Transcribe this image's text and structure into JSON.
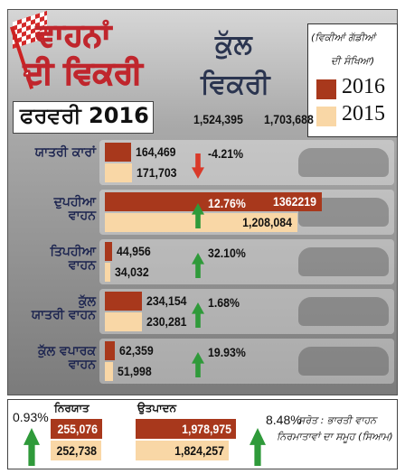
{
  "chart_data": {
    "type": "bar",
    "orientation": "horizontal",
    "title_lines": [
      "ਵਾਹਨਾਂ",
      "ਦੀ ਵਿਕਰੀ"
    ],
    "subtitle": "ਫਰਵਰੀ 2016",
    "total_title_lines": [
      "ਕੁੱਲ",
      "ਵਿਕਰੀ"
    ],
    "totals": {
      "values": [
        1524395,
        1703688
      ],
      "value_labels": [
        "1,524,395",
        "1,703,688"
      ]
    },
    "legend_title_lines": [
      "(ਵਿਕੀਆਂ ਗੱਡੀਆਂ",
      "ਦੀ ਸੰਖਿਆ)"
    ],
    "categories": [
      "ਯਾਤਰੀ ਕਾਰਾਂ",
      "ਦੁਪਹੀਆ\nਵਾਹਨ",
      "ਤਿਪਹੀਆ\nਵਾਹਨ",
      "ਕੁੱਲ\nਯਾਤਰੀ ਵਾਹਨ",
      "ਕੁੱਲ ਵਪਾਰਕ\nਵਾਹਨ"
    ],
    "series": [
      {
        "name": "2016",
        "color": "#a8381c",
        "values": [
          164469,
          1362219,
          44956,
          234154,
          62359
        ],
        "value_labels": [
          "164,469",
          "1362219",
          "44,956",
          "234,154",
          "62,359"
        ]
      },
      {
        "name": "2015",
        "color": "#f9d7a6",
        "values": [
          171703,
          1208084,
          34032,
          230281,
          51998
        ],
        "value_labels": [
          "171,703",
          "1,208,084",
          "34,032",
          "230,281",
          "51,998"
        ]
      }
    ],
    "changes": {
      "values": [
        -4.21,
        12.76,
        32.1,
        1.68,
        19.93
      ],
      "value_labels": [
        "-4.21%",
        "12.76%",
        "32.10%",
        "1.68%",
        "19.93%"
      ]
    },
    "xlim": [
      0,
      1400000
    ],
    "summary": [
      {
        "title": "ਨਿਰਯਾਤ",
        "xlim": [
          0,
          270000
        ],
        "values": [
          255076,
          252738
        ],
        "value_labels": [
          "255,076",
          "252,738"
        ],
        "change": 0.93,
        "change_label": "0.93%"
      },
      {
        "title": "ਉਤਪਾਦਨ",
        "xlim": [
          0,
          2100000
        ],
        "values": [
          1978975,
          1824257
        ],
        "value_labels": [
          "1,978,975",
          "1,824,257"
        ],
        "change": 8.48,
        "change_label": "8.48%"
      }
    ],
    "source_lines": [
      "ਸਰੋਤ : ਭਾਰਤੀ ਵਾਹਨ",
      "ਨਿਰਮਾਤਾਵਾਂ ਦਾ ਸਮੂਹ (ਸਿਆਮ)"
    ]
  }
}
